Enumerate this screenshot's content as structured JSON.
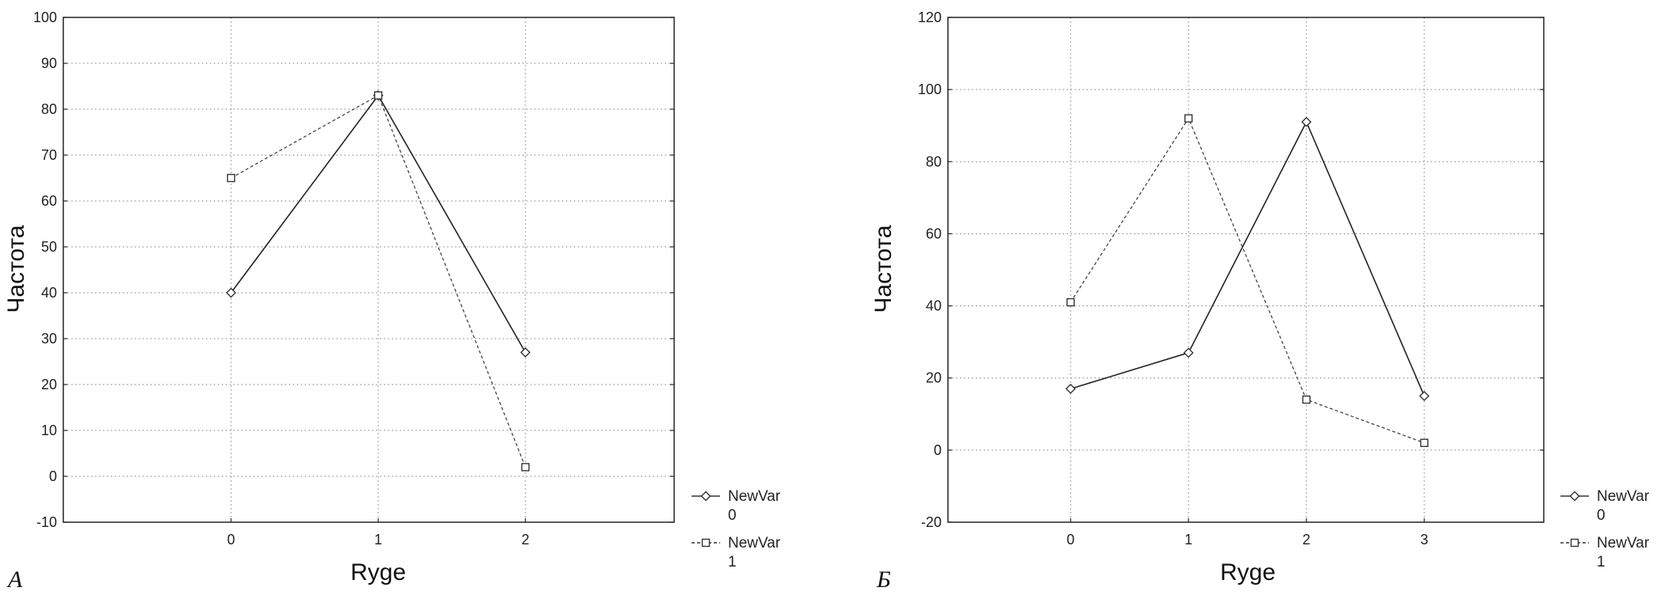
{
  "chart_data": [
    {
      "type": "line",
      "panel_label": "А",
      "xlabel": "Ryge",
      "ylabel": "Частота",
      "categories": [
        "0",
        "1",
        "2"
      ],
      "ylim": [
        -10,
        100
      ],
      "yticks": [
        "-10",
        "0",
        "10",
        "20",
        "30",
        "40",
        "50",
        "60",
        "70",
        "80",
        "90",
        "100"
      ],
      "grid": true,
      "legend_position": "bottom-right outside",
      "series": [
        {
          "name": "NewVar 0",
          "legend_line1": "NewVar",
          "legend_line2": "0",
          "marker": "diamond",
          "line_style": "solid",
          "values": [
            40,
            83,
            27
          ]
        },
        {
          "name": "NewVar 1",
          "legend_line1": "NewVar",
          "legend_line2": "1",
          "marker": "square",
          "line_style": "dashed",
          "values": [
            65,
            83,
            2
          ]
        }
      ]
    },
    {
      "type": "line",
      "panel_label": "Б",
      "xlabel": "Ryge",
      "ylabel": "Частота",
      "categories": [
        "0",
        "1",
        "2",
        "3"
      ],
      "ylim": [
        -20,
        120
      ],
      "yticks": [
        "-20",
        "0",
        "20",
        "40",
        "60",
        "80",
        "100",
        "120"
      ],
      "grid": true,
      "legend_position": "bottom-right outside",
      "series": [
        {
          "name": "NewVar 0",
          "legend_line1": "NewVar",
          "legend_line2": "0",
          "marker": "diamond",
          "line_style": "solid",
          "values": [
            17,
            27,
            91,
            15
          ]
        },
        {
          "name": "NewVar 1",
          "legend_line1": "NewVar",
          "legend_line2": "1",
          "marker": "square",
          "line_style": "dashed",
          "values": [
            41,
            92,
            14,
            2
          ]
        }
      ]
    }
  ]
}
